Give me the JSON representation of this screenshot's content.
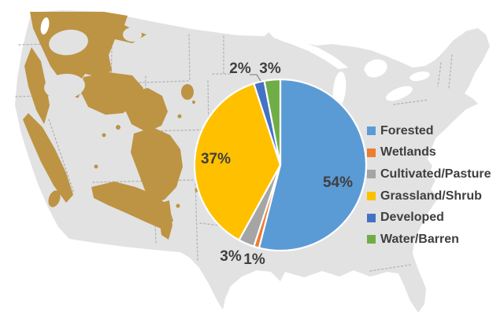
{
  "chart_data": {
    "type": "pie",
    "title": "",
    "start_angle_deg": 0,
    "direction": "clockwise",
    "legend_position": "right",
    "center": [
      356,
      210
    ],
    "radius": 109,
    "slices": [
      {
        "label": "Forested",
        "value": 54,
        "pct_label": "54%",
        "color": "#5B9BD5",
        "label_pos": [
          429,
          233
        ]
      },
      {
        "label": "Wetlands",
        "value": 1,
        "pct_label": "1%",
        "color": "#ED7D31",
        "label_pos": [
          323,
          331
        ]
      },
      {
        "label": "Cultivated/Pasture",
        "value": 3,
        "pct_label": "3%",
        "color": "#A5A5A5",
        "label_pos": [
          293,
          327
        ]
      },
      {
        "label": "Grassland/Shrub",
        "value": 37,
        "pct_label": "37%",
        "color": "#FFC000",
        "label_pos": [
          274,
          203
        ]
      },
      {
        "label": "Developed",
        "value": 2,
        "pct_label": "2%",
        "color": "#4472C4",
        "label_pos": [
          305,
          88
        ],
        "leader": [
          [
            317,
            95
          ],
          [
            326,
            95
          ],
          [
            331,
            103
          ]
        ]
      },
      {
        "label": "Water/Barren",
        "value": 3,
        "pct_label": "3%",
        "color": "#70AD47",
        "label_pos": [
          343,
          88
        ]
      }
    ]
  },
  "legend": {
    "items": [
      "Forested",
      "Wetlands",
      "Cultivated/Pasture",
      "Grassland/Shrub",
      "Developed",
      "Water/Barren"
    ]
  },
  "map": {
    "base_color": "#E2E2E2",
    "highlight_color": "#BD9443",
    "state_border_color": "#B3B3B3",
    "water_color": "#FFFFFF"
  },
  "styles": {
    "label_text_color": "#3F3F3F",
    "pie_border_color": "#FFFFFF",
    "leader_line_color": "#8C8C8C"
  }
}
